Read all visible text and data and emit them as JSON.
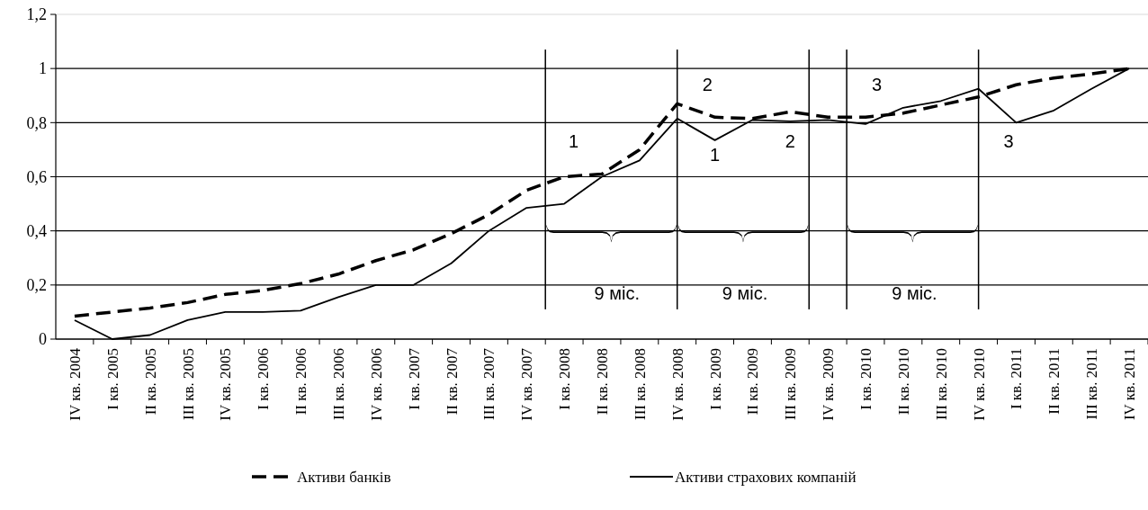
{
  "chart_data": {
    "type": "line",
    "categories": [
      "IV кв. 2004",
      "I кв. 2005",
      "II кв. 2005",
      "III кв. 2005",
      "IV кв. 2005",
      "I кв. 2006",
      "II кв. 2006",
      "III кв. 2006",
      "IV кв. 2006",
      "I кв. 2007",
      "II кв. 2007",
      "III кв. 2007",
      "IV кв. 2007",
      "I кв. 2008",
      "II кв. 2008",
      "III кв. 2008",
      "IV кв. 2008",
      "I кв. 2009",
      "II кв. 2009",
      "III кв. 2009",
      "IV кв. 2009",
      "I кв. 2010",
      "II кв. 2010",
      "III кв. 2010",
      "IV кв. 2010",
      "I кв. 2011",
      "II кв. 2011",
      "III кв. 2011",
      "IV кв. 2011"
    ],
    "series": [
      {
        "name": "Активи банків",
        "color": "#000000",
        "line_style": "dashed",
        "values": [
          0.085,
          0.1,
          0.115,
          0.135,
          0.165,
          0.18,
          0.205,
          0.24,
          0.29,
          0.33,
          0.39,
          0.46,
          0.55,
          0.6,
          0.61,
          0.7,
          0.87,
          0.82,
          0.815,
          0.84,
          0.82,
          0.82,
          0.835,
          0.865,
          0.895,
          0.94,
          0.965,
          0.98,
          1.0
        ]
      },
      {
        "name": "Активи страхових компаній",
        "color": "#000000",
        "line_style": "solid",
        "values": [
          0.07,
          0.0,
          0.015,
          0.07,
          0.1,
          0.1,
          0.105,
          0.155,
          0.2,
          0.2,
          0.28,
          0.4,
          0.485,
          0.5,
          0.6,
          0.66,
          0.815,
          0.735,
          0.81,
          0.805,
          0.81,
          0.795,
          0.855,
          0.88,
          0.925,
          0.8,
          0.845,
          0.925,
          1.0
        ]
      }
    ],
    "ylim": [
      0,
      1.2
    ],
    "yticks": [
      0,
      {
        "value": 0.2,
        "label": "0,2"
      },
      {
        "value": 0.4,
        "label": "0,4"
      },
      {
        "value": 0.6,
        "label": "0,6"
      },
      {
        "value": 0.8,
        "label": "0,8"
      },
      1,
      {
        "value": 1.2,
        "label": "1,2"
      }
    ],
    "grid": "y",
    "legend": "bottom",
    "marker": "none",
    "annotations": [
      "1",
      "2",
      "1",
      "2",
      "3",
      "3",
      "9 міс.",
      "9 міс.",
      "9 міс."
    ]
  }
}
